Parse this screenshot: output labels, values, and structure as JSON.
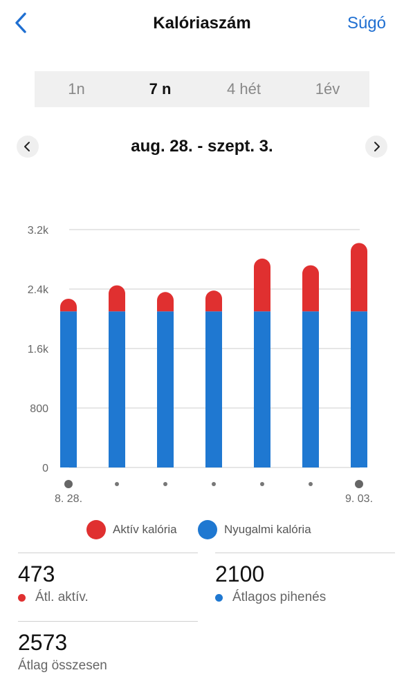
{
  "header": {
    "title": "Kalóriaszám",
    "help_label": "Súgó",
    "back_icon": "chevron-left-icon"
  },
  "tabs": [
    {
      "label": "1n",
      "active": false
    },
    {
      "label": "7 n",
      "active": true
    },
    {
      "label": "4 hét",
      "active": false
    },
    {
      "label": "1év",
      "active": false
    }
  ],
  "date_range": {
    "label": "aug. 28. - szept. 3.",
    "prev_icon": "chevron-left-icon",
    "next_icon": "chevron-right-icon"
  },
  "colors": {
    "active": "#e03030",
    "resting": "#1f78d1",
    "accent": "#1f6fd1"
  },
  "chart_data": {
    "type": "bar",
    "stacked": true,
    "categories": [
      "8. 28.",
      "",
      "",
      "",
      "",
      "",
      "9. 03."
    ],
    "series": [
      {
        "name": "Nyugalmi kalória",
        "color": "#1f78d1",
        "values": [
          2100,
          2100,
          2100,
          2100,
          2100,
          2100,
          2100
        ]
      },
      {
        "name": "Aktív kalória",
        "color": "#e03030",
        "values": [
          170,
          350,
          260,
          280,
          710,
          620,
          920
        ]
      }
    ],
    "y_ticks": [
      "0",
      "800",
      "1.6k",
      "2.4k",
      "3.2k"
    ],
    "y_tick_values": [
      0,
      800,
      1600,
      2400,
      3200
    ],
    "ylim": [
      0,
      3200
    ],
    "grid": true,
    "legend_position": "bottom"
  },
  "legend": [
    {
      "label": "Aktív kalória",
      "color": "#e03030"
    },
    {
      "label": "Nyugalmi kalória",
      "color": "#1f78d1"
    }
  ],
  "stats": {
    "avg_active": {
      "value": "473",
      "label": "Átl. aktív."
    },
    "avg_resting": {
      "value": "2100",
      "label": "Átlagos pihenés"
    },
    "avg_total": {
      "value": "2573",
      "label": "Átlag összesen"
    }
  }
}
